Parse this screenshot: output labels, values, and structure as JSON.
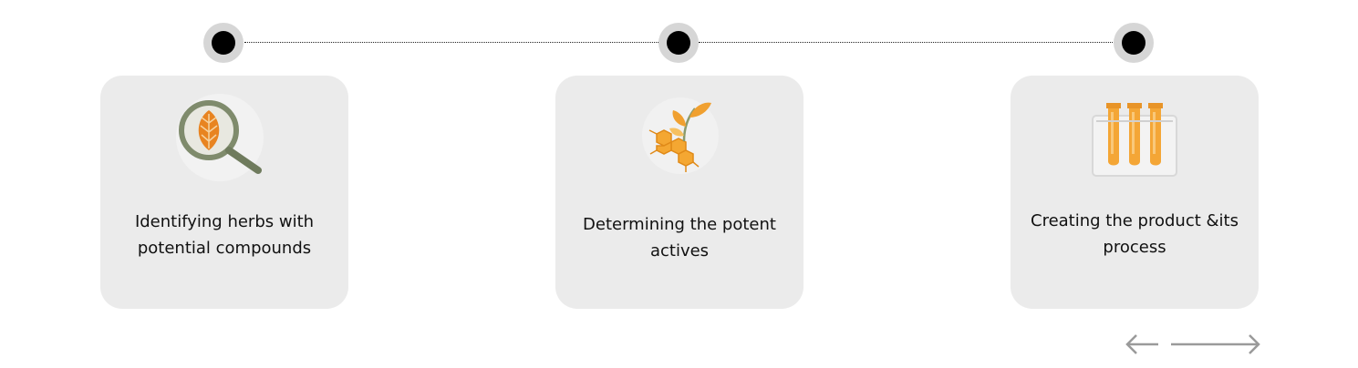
{
  "steps": [
    {
      "label": "Identifying herbs with\n potential compounds",
      "icon": "magnifier-leaf-icon"
    },
    {
      "label": "Determining the potent\nactives",
      "icon": "plant-molecule-icon"
    },
    {
      "label": "Creating the product &its\nprocess",
      "icon": "test-tubes-icon"
    }
  ],
  "navigation": {
    "prev_icon": "arrow-left-icon",
    "next_icon": "arrow-right-icon"
  },
  "colors": {
    "card_bg": "#ebebeb",
    "node_ring": "#d6d6d6",
    "node_dot": "#000000",
    "icon_orange": "#f0a030",
    "icon_green": "#7a8a6a",
    "arrow": "#9a9a9a"
  }
}
